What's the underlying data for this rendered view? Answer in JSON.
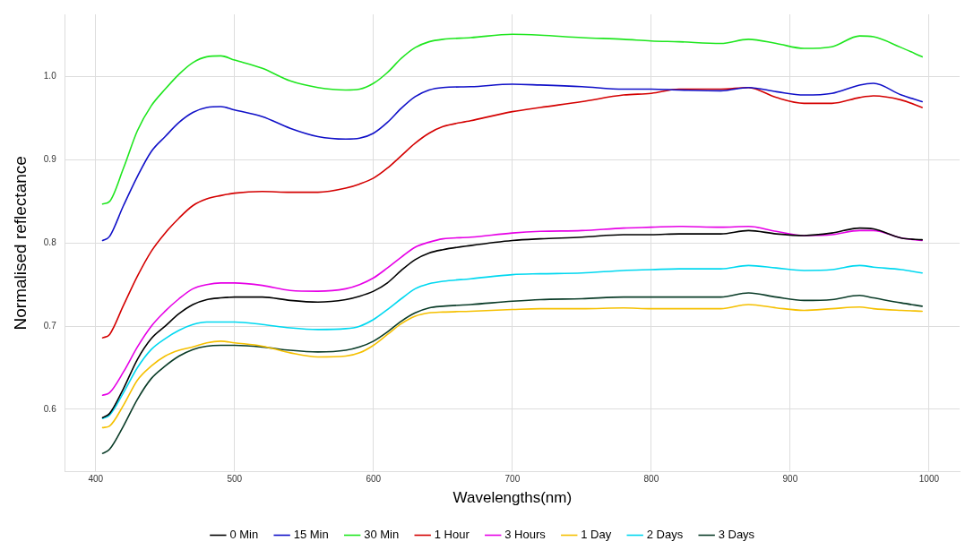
{
  "chart_data": {
    "type": "line",
    "xlabel": "Wavelengths(nm)",
    "ylabel": "Normalised reflectance",
    "x": [
      405,
      410,
      420,
      430,
      440,
      450,
      460,
      470,
      480,
      490,
      500,
      520,
      540,
      560,
      580,
      590,
      600,
      610,
      620,
      630,
      640,
      650,
      670,
      700,
      720,
      750,
      780,
      800,
      820,
      850,
      870,
      890,
      910,
      930,
      950,
      960,
      980,
      995
    ],
    "series": [
      {
        "name": "0 Min",
        "color": "#000000",
        "values": [
          0.59,
          0.595,
          0.625,
          0.66,
          0.685,
          0.7,
          0.715,
          0.726,
          0.732,
          0.734,
          0.735,
          0.735,
          0.731,
          0.729,
          0.732,
          0.736,
          0.742,
          0.752,
          0.767,
          0.78,
          0.788,
          0.792,
          0.797,
          0.803,
          0.805,
          0.807,
          0.81,
          0.81,
          0.811,
          0.811,
          0.815,
          0.811,
          0.809,
          0.812,
          0.818,
          0.817,
          0.806,
          0.804
        ]
      },
      {
        "name": "15 Min",
        "color": "#1010c8",
        "values": [
          0.803,
          0.808,
          0.845,
          0.88,
          0.91,
          0.928,
          0.945,
          0.957,
          0.963,
          0.964,
          0.96,
          0.952,
          0.938,
          0.928,
          0.925,
          0.926,
          0.932,
          0.945,
          0.962,
          0.976,
          0.984,
          0.987,
          0.988,
          0.991,
          0.99,
          0.988,
          0.985,
          0.985,
          0.984,
          0.983,
          0.987,
          0.982,
          0.978,
          0.98,
          0.99,
          0.992,
          0.978,
          0.97
        ]
      },
      {
        "name": "30 Min",
        "color": "#1ee61e",
        "values": [
          0.847,
          0.85,
          0.89,
          0.935,
          0.965,
          0.985,
          1.003,
          1.017,
          1.024,
          1.025,
          1.02,
          1.01,
          0.995,
          0.987,
          0.984,
          0.985,
          0.992,
          1.005,
          1.022,
          1.035,
          1.042,
          1.045,
          1.047,
          1.051,
          1.05,
          1.047,
          1.045,
          1.043,
          1.042,
          1.04,
          1.045,
          1.04,
          1.034,
          1.036,
          1.049,
          1.048,
          1.035,
          1.024
        ]
      },
      {
        "name": "1 Hour",
        "color": "#d40000",
        "values": [
          0.686,
          0.69,
          0.725,
          0.76,
          0.79,
          0.812,
          0.83,
          0.845,
          0.853,
          0.857,
          0.86,
          0.862,
          0.861,
          0.861,
          0.866,
          0.871,
          0.878,
          0.89,
          0.905,
          0.92,
          0.932,
          0.94,
          0.947,
          0.958,
          0.963,
          0.97,
          0.978,
          0.98,
          0.985,
          0.985,
          0.987,
          0.975,
          0.968,
          0.968,
          0.975,
          0.977,
          0.972,
          0.963
        ]
      },
      {
        "name": "3 Hours",
        "color": "#e600e6",
        "values": [
          0.617,
          0.62,
          0.645,
          0.675,
          0.7,
          0.718,
          0.733,
          0.745,
          0.75,
          0.752,
          0.752,
          0.749,
          0.743,
          0.742,
          0.745,
          0.75,
          0.758,
          0.77,
          0.783,
          0.795,
          0.801,
          0.805,
          0.807,
          0.812,
          0.814,
          0.815,
          0.818,
          0.819,
          0.82,
          0.819,
          0.82,
          0.814,
          0.809,
          0.81,
          0.815,
          0.815,
          0.806,
          0.803
        ]
      },
      {
        "name": "1 Day",
        "color": "#f5c000",
        "values": [
          0.578,
          0.58,
          0.605,
          0.635,
          0.652,
          0.664,
          0.671,
          0.675,
          0.68,
          0.682,
          0.68,
          0.676,
          0.668,
          0.663,
          0.664,
          0.668,
          0.677,
          0.69,
          0.703,
          0.712,
          0.716,
          0.717,
          0.718,
          0.72,
          0.721,
          0.721,
          0.722,
          0.721,
          0.721,
          0.721,
          0.726,
          0.722,
          0.719,
          0.721,
          0.723,
          0.721,
          0.719,
          0.718
        ]
      },
      {
        "name": "2 Days",
        "color": "#00d8f0",
        "values": [
          0.589,
          0.593,
          0.62,
          0.65,
          0.672,
          0.685,
          0.695,
          0.702,
          0.705,
          0.705,
          0.705,
          0.702,
          0.698,
          0.696,
          0.697,
          0.7,
          0.708,
          0.72,
          0.733,
          0.745,
          0.751,
          0.754,
          0.757,
          0.762,
          0.763,
          0.764,
          0.767,
          0.768,
          0.769,
          0.769,
          0.773,
          0.77,
          0.767,
          0.768,
          0.773,
          0.771,
          0.768,
          0.764
        ]
      },
      {
        "name": "3 Days",
        "color": "#0a3c28",
        "values": [
          0.547,
          0.552,
          0.58,
          0.612,
          0.637,
          0.652,
          0.664,
          0.672,
          0.676,
          0.677,
          0.677,
          0.675,
          0.671,
          0.669,
          0.671,
          0.675,
          0.682,
          0.693,
          0.706,
          0.716,
          0.722,
          0.724,
          0.726,
          0.73,
          0.732,
          0.733,
          0.735,
          0.735,
          0.735,
          0.735,
          0.74,
          0.735,
          0.731,
          0.732,
          0.737,
          0.734,
          0.728,
          0.724
        ]
      }
    ],
    "xlim": [
      378,
      1022
    ],
    "xticks": [
      400,
      500,
      600,
      700,
      800,
      900,
      1000
    ],
    "ylim": [
      0.525,
      1.075
    ],
    "yticks": [
      0.6,
      0.7,
      0.8,
      0.9,
      {
        "value": 1,
        "label": "1.0"
      }
    ],
    "grid": true,
    "legend": "bottom",
    "marker": "none",
    "line_style": "solid"
  }
}
